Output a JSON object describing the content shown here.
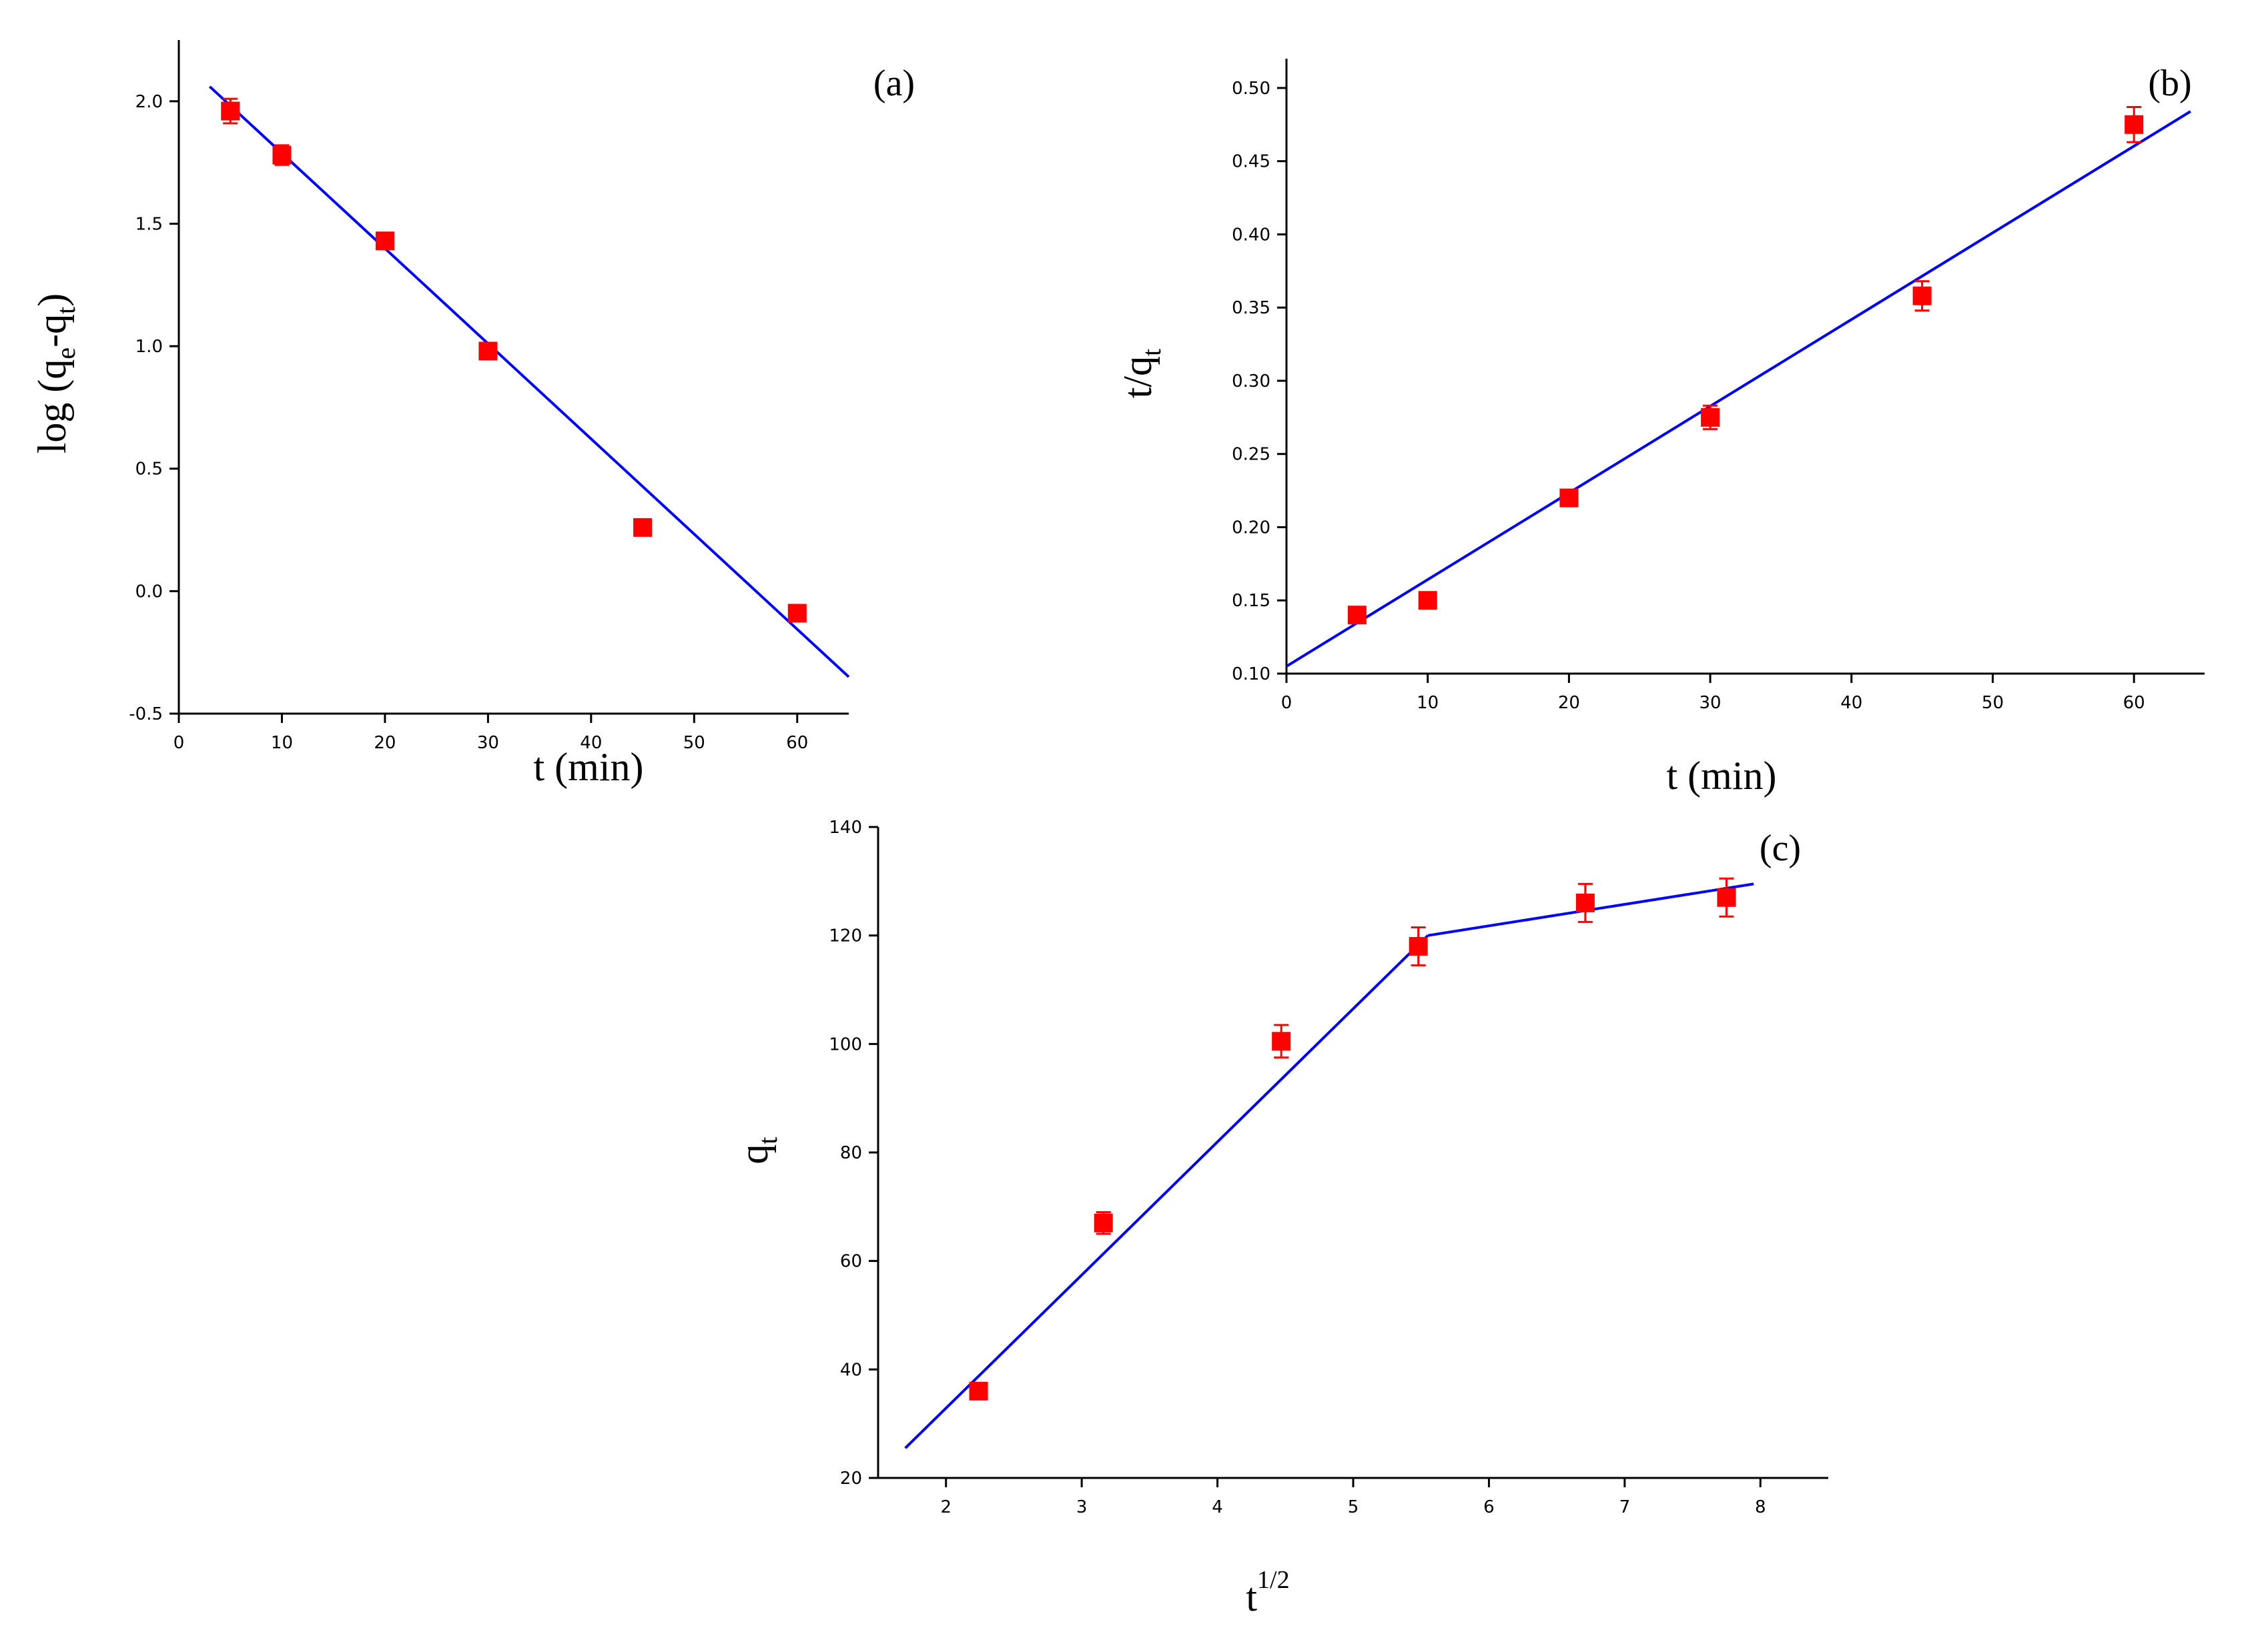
{
  "chart_data": [
    {
      "type": "scatter",
      "panel": "(a)",
      "xlabel": "t (min)",
      "ylabel": {
        "base": "log (q",
        "sub1": "e",
        "mid": "-q",
        "sub2": "t",
        "end": ")"
      },
      "xlim": [
        0,
        65
      ],
      "ylim": [
        -0.5,
        2.25
      ],
      "xticks": [
        "0",
        "10",
        "20",
        "30",
        "40",
        "50",
        "60"
      ],
      "yticks": [
        "-0.5",
        "0.0",
        "0.5",
        "1.0",
        "1.5",
        "2.0"
      ],
      "points": {
        "x": [
          5,
          10,
          20,
          30,
          45,
          60
        ],
        "y": [
          1.96,
          1.78,
          1.43,
          0.98,
          0.26,
          -0.09
        ],
        "err": [
          0.05,
          0.04,
          0.03,
          0.02,
          0.02,
          0.02
        ]
      },
      "fit_lines": [
        {
          "x": [
            3,
            65
          ],
          "y": [
            2.06,
            -0.35
          ]
        }
      ],
      "colors": {
        "points": "#ff0000",
        "line": "#0000ff"
      }
    },
    {
      "type": "scatter",
      "panel": "(b)",
      "xlabel": "t (min)",
      "ylabel": {
        "base": "t/q",
        "sub1": "t"
      },
      "xlim": [
        0,
        65
      ],
      "ylim": [
        0.1,
        0.52
      ],
      "xticks": [
        "0",
        "10",
        "20",
        "30",
        "40",
        "50",
        "60"
      ],
      "yticks": [
        "0.10",
        "0.15",
        "0.20",
        "0.25",
        "0.30",
        "0.35",
        "0.40",
        "0.45",
        "0.50"
      ],
      "points": {
        "x": [
          5,
          10,
          20,
          30,
          45,
          60
        ],
        "y": [
          0.14,
          0.15,
          0.22,
          0.275,
          0.358,
          0.475
        ],
        "err": [
          0.004,
          0.004,
          0.005,
          0.008,
          0.01,
          0.012
        ]
      },
      "fit_lines": [
        {
          "x": [
            0,
            64
          ],
          "y": [
            0.105,
            0.484
          ]
        }
      ],
      "colors": {
        "points": "#ff0000",
        "line": "#0000ff"
      }
    },
    {
      "type": "scatter",
      "panel": "(c)",
      "xlabel": {
        "base": "t",
        "sup": "1/2"
      },
      "ylabel": {
        "base": "q",
        "sub1": "t"
      },
      "xlim": [
        1.5,
        8.5
      ],
      "ylim": [
        20,
        140
      ],
      "xticks": [
        "2",
        "3",
        "4",
        "5",
        "6",
        "7",
        "8"
      ],
      "yticks": [
        "20",
        "40",
        "60",
        "80",
        "100",
        "120",
        "140"
      ],
      "points": {
        "x": [
          2.24,
          3.16,
          4.47,
          5.48,
          6.71,
          7.75
        ],
        "y": [
          36,
          67,
          100.5,
          118,
          126,
          127
        ],
        "err": [
          1.5,
          2,
          3,
          3.5,
          3.5,
          3.5
        ]
      },
      "fit_lines": [
        {
          "x": [
            1.7,
            5.55
          ],
          "y": [
            25.5,
            120
          ]
        },
        {
          "x": [
            5.55,
            7.95
          ],
          "y": [
            120,
            129.5
          ]
        }
      ],
      "colors": {
        "points": "#ff0000",
        "line": "#0000ff"
      }
    }
  ]
}
